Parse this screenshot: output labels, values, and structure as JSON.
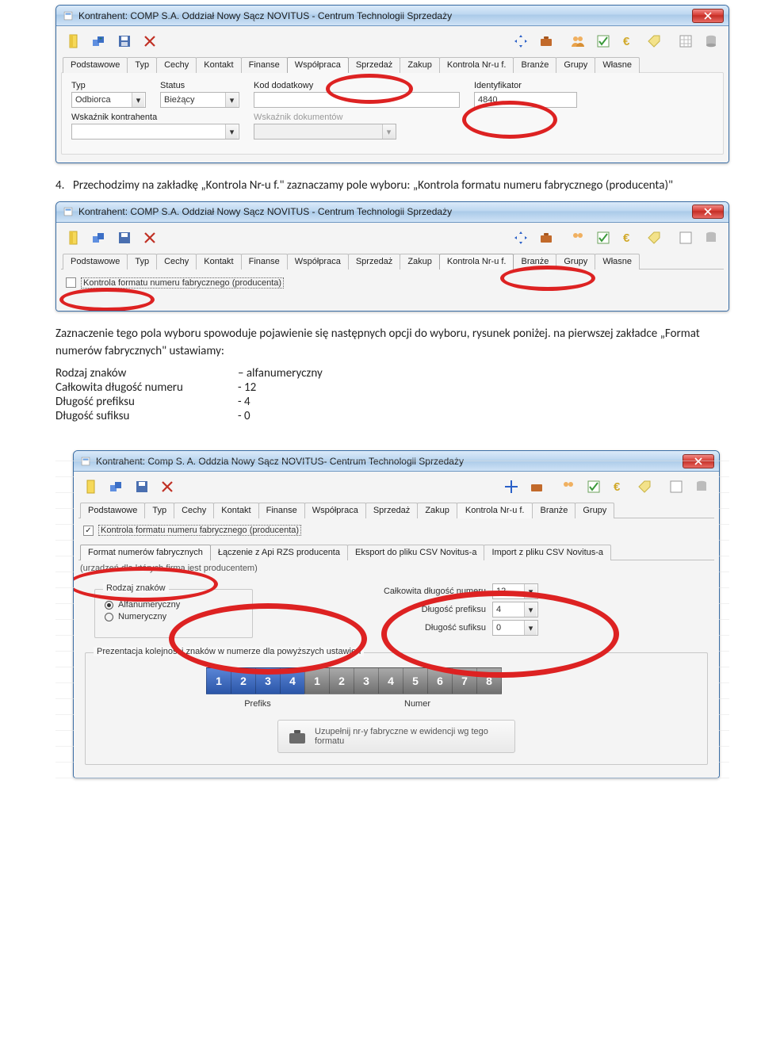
{
  "colors": {
    "red_ellipse": "#d22222",
    "titlebar_top": "#dbeaf9",
    "titlebar_bot": "#a9c9e8",
    "close_top": "#f08b86",
    "close_bot": "#c22c24",
    "digit_blue_top": "#5a85d6",
    "digit_blue_bot": "#2b56a8",
    "digit_grey_top": "#a9a9a9",
    "digit_grey_bot": "#707070"
  },
  "win_title": "Kontrahent: COMP S.A. Oddział Nowy Sącz NOVITUS - Centrum Technologii Sprzedaży",
  "win_title_3": "Kontrahent: Comp S. A. Oddzia Nowy Sącz NOVITUS- Centrum Technologii Sprzedaży",
  "tabs": {
    "t0": "Podstawowe",
    "t1": "Typ",
    "t2": "Cechy",
    "t3": "Kontakt",
    "t4": "Finanse",
    "t5": "Współpraca",
    "t6": "Sprzedaż",
    "t7": "Zakup",
    "t8": "Kontrola Nr-u f.",
    "t9": "Branże",
    "t10": "Grupy",
    "t11": "Własne"
  },
  "f1": {
    "typ_label": "Typ",
    "typ_value": "Odbiorca",
    "status_label": "Status",
    "status_value": "Bieżący",
    "kod_label": "Kod dodatkowy",
    "kod_value": "",
    "id_label": "Identyfikator",
    "id_value": "4840",
    "wk_label": "Wskaźnik kontrahenta",
    "wd_label": "Wskaźnik dokumentów"
  },
  "prose1a": "Przechodzimy na zakładkę „Kontrola Nr-u f.\"  zaznaczamy  pole wyboru:  „Kontrola formatu numeru fabrycznego (producenta)\"",
  "prose1num": "4.",
  "chk2_label": "Kontrola formatu numeru fabrycznego (producenta)",
  "prose2": "Zaznaczenie tego pola wyboru spowoduje pojawienie się następnych opcji do wyboru, rysunek poniżej. na pierwszej zakładce „Format numerów fabrycznych\" ustawiamy:",
  "prose_rows": {
    "r0k": "Rodzaj znaków",
    "r0v": "– alfanumeryczny",
    "r1k": "Całkowita długość numeru",
    "r1v": "- 12",
    "r2k": "Długość prefiksu",
    "r2v": "- 4",
    "r3k": "Długość sufiksu",
    "r3v": "- 0"
  },
  "win3": {
    "chk_label": "Kontrola formatu numeru fabrycznego (producenta)",
    "subtabs": {
      "s0": "Format numerów fabrycznych",
      "s1": "Łączenie z Api RZS producenta",
      "s2": "Eksport do pliku CSV Novitus-a",
      "s3": "Import z pliku CSV Novitus-a"
    },
    "hint": "(urządzeń dla których firma jest producentem)",
    "group_legend": "Rodzaj znaków",
    "radio_alpha": "Alfanumeryczny",
    "radio_num": "Numeryczny",
    "len_total_label": "Całkowita długość numeru",
    "len_total_value": "12",
    "len_prefix_label": "Długość prefiksu",
    "len_prefix_value": "4",
    "len_suffix_label": "Długość sufiksu",
    "len_suffix_value": "0",
    "digits_legend": "Prezentacja kolejności znaków w numerze dla powyższych ustawień",
    "prefix_digits": [
      "1",
      "2",
      "3",
      "4"
    ],
    "number_digits": [
      "1",
      "2",
      "3",
      "4",
      "5",
      "6",
      "7",
      "8"
    ],
    "pfx_lbl": "Prefiks",
    "num_lbl": "Numer",
    "bigbtn": "Uzupełnij nr-y fabryczne w ewidencji wg tego formatu"
  }
}
